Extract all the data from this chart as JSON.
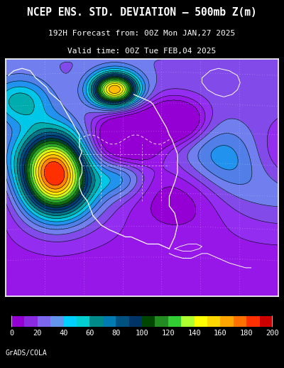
{
  "title_line1": "NCEP ENS. STD. DEVIATION – 500mb Z(m)",
  "title_line2": "192H Forecast from: 00Z Mon JAN,27 2025",
  "title_line3": "Valid time: 00Z Tue FEB,04 2025",
  "colorbar_values": [
    0,
    20,
    40,
    60,
    80,
    100,
    120,
    140,
    160,
    180,
    200
  ],
  "colorbar_colors": [
    "#9400D3",
    "#8A2BE2",
    "#7B68EE",
    "#6495ED",
    "#00BFFF",
    "#00CED1",
    "#008B8B",
    "#005580",
    "#003366",
    "#006400",
    "#228B22",
    "#32CD32",
    "#ADFF2F",
    "#FFFF00",
    "#FFD700",
    "#FFA500",
    "#FF8C00",
    "#FF4500",
    "#FF0000",
    "#CC0000"
  ],
  "background_color": "#000000",
  "credit": "GrADS/COLA",
  "label_color": "#FFFFFF",
  "title_color": "#FFFFFF",
  "title_fontsize": 10.5,
  "subtitle_fontsize": 8.0,
  "map_border_color": "#FFFFFF",
  "graticule_color_dot": "#AAAAAA",
  "coastline_color": "#FFFFFF"
}
